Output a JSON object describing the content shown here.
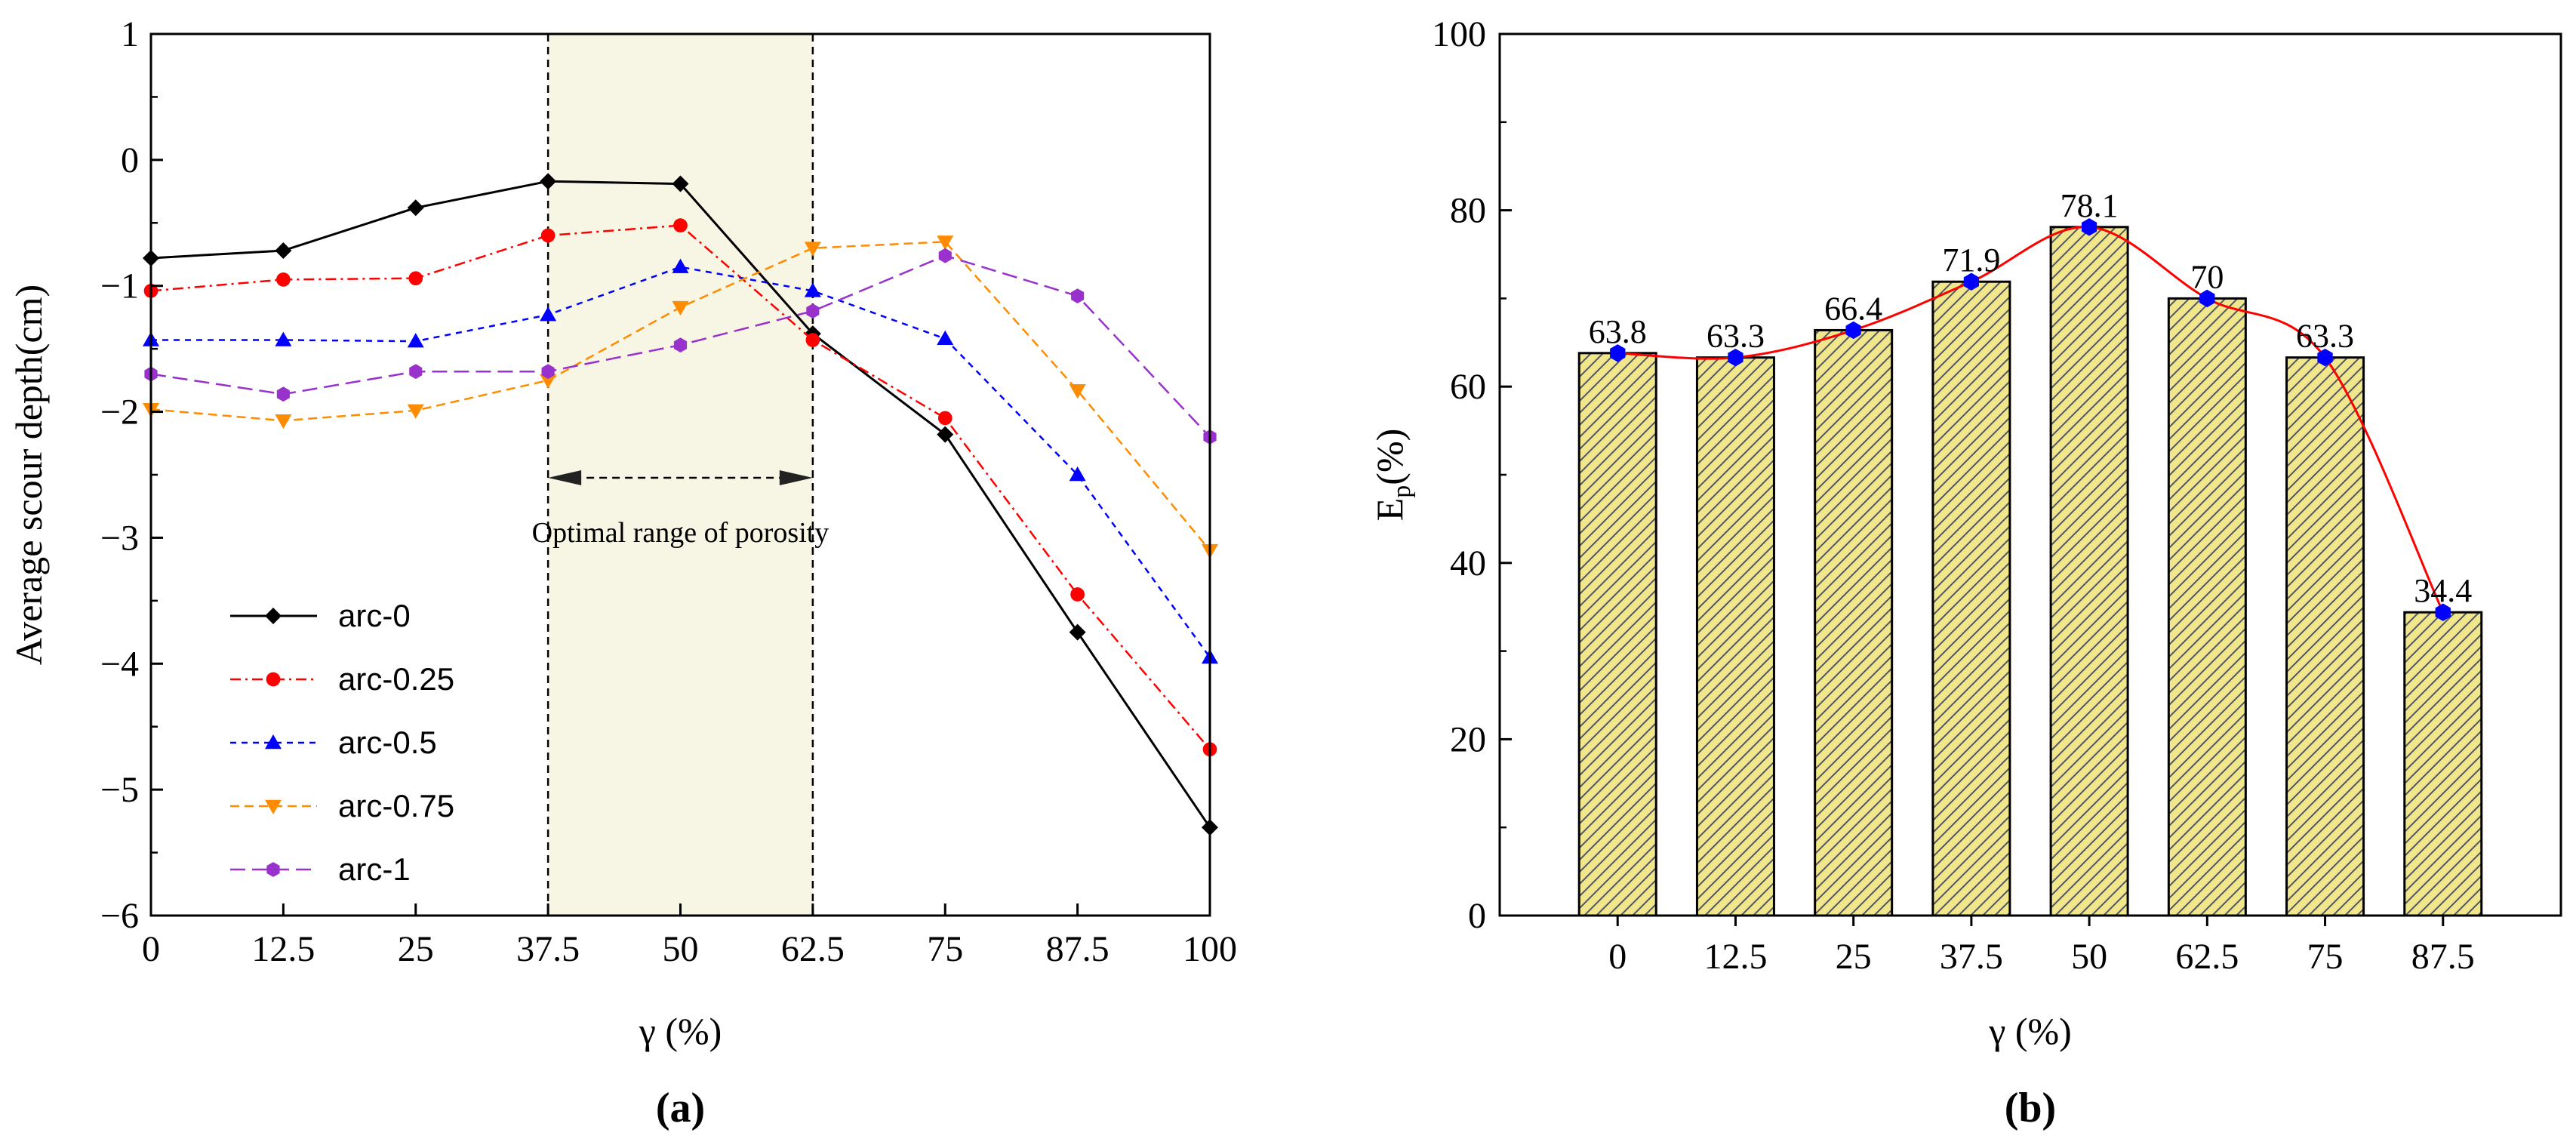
{
  "chart_data": [
    {
      "type": "line",
      "panel_label": "(a)",
      "xlabel": "γ (%)",
      "ylabel": "Average scour depth(cm)",
      "x": [
        0,
        12.5,
        25,
        37.5,
        50,
        62.5,
        75,
        87.5,
        100
      ],
      "x_tick_labels": [
        "0",
        "12.5",
        "25",
        "37.5",
        "50",
        "62.5",
        "75",
        "87.5",
        "100"
      ],
      "xlim": [
        0,
        100
      ],
      "ylim": [
        -6,
        1
      ],
      "y_ticks": [
        1,
        0,
        -1,
        -2,
        -3,
        -4,
        -5,
        -6
      ],
      "y_tick_labels": [
        "1",
        "0",
        "−1",
        "−2",
        "−3",
        "−4",
        "−5",
        "−6"
      ],
      "shaded_range": {
        "x_start": 37.5,
        "x_end": 62.5,
        "color": "#f7f5e3"
      },
      "annotation": "Optimal range of porosity",
      "legend_position": "lower-left",
      "series": [
        {
          "name": "arc-0",
          "color": "#000000",
          "dash": "solid",
          "marker": "diamond",
          "values": [
            -0.78,
            -0.72,
            -0.38,
            -0.17,
            -0.19,
            -1.38,
            -2.18,
            -3.75,
            -5.3
          ]
        },
        {
          "name": "arc-0.25",
          "color": "#ff0000",
          "dash": "dashdot",
          "marker": "circle",
          "values": [
            -1.04,
            -0.95,
            -0.94,
            -0.6,
            -0.52,
            -1.43,
            -2.05,
            -3.45,
            -4.68
          ]
        },
        {
          "name": "arc-0.5",
          "color": "#0000ff",
          "dash": "short-dash",
          "marker": "triangle-up",
          "values": [
            -1.43,
            -1.43,
            -1.44,
            -1.23,
            -0.85,
            -1.04,
            -1.42,
            -2.5,
            -3.95
          ]
        },
        {
          "name": "arc-0.75",
          "color": "#ff8c00",
          "dash": "dash",
          "marker": "triangle-down",
          "values": [
            -1.98,
            -2.07,
            -1.99,
            -1.75,
            -1.17,
            -0.7,
            -0.65,
            -1.83,
            -3.1
          ]
        },
        {
          "name": "arc-1",
          "color": "#9932cc",
          "dash": "long-dash",
          "marker": "hexagon",
          "values": [
            -1.7,
            -1.86,
            -1.68,
            -1.68,
            -1.47,
            -1.2,
            -0.76,
            -1.08,
            -2.2
          ]
        }
      ]
    },
    {
      "type": "bar",
      "panel_label": "(b)",
      "xlabel": "γ (%)",
      "ylabel": "E",
      "ylabel_sub": "p",
      "ylabel_unit": "(%)",
      "categories": [
        "0",
        "12.5",
        "25",
        "37.5",
        "50",
        "62.5",
        "75",
        "87.5"
      ],
      "values": [
        63.8,
        63.3,
        66.4,
        71.9,
        78.1,
        70,
        63.3,
        34.4
      ],
      "value_labels": [
        "63.8",
        "63.3",
        "66.4",
        "71.9",
        "78.1",
        "70",
        "63.3",
        "34.4"
      ],
      "ylim": [
        0,
        100
      ],
      "y_ticks": [
        0,
        20,
        40,
        60,
        80,
        100
      ],
      "y_tick_labels": [
        "0",
        "20",
        "40",
        "60",
        "80",
        "100"
      ],
      "bar_color": "#f0e68c",
      "hatch": "diagonal",
      "line_color": "#ff0000",
      "marker_color": "#0000ff"
    }
  ]
}
